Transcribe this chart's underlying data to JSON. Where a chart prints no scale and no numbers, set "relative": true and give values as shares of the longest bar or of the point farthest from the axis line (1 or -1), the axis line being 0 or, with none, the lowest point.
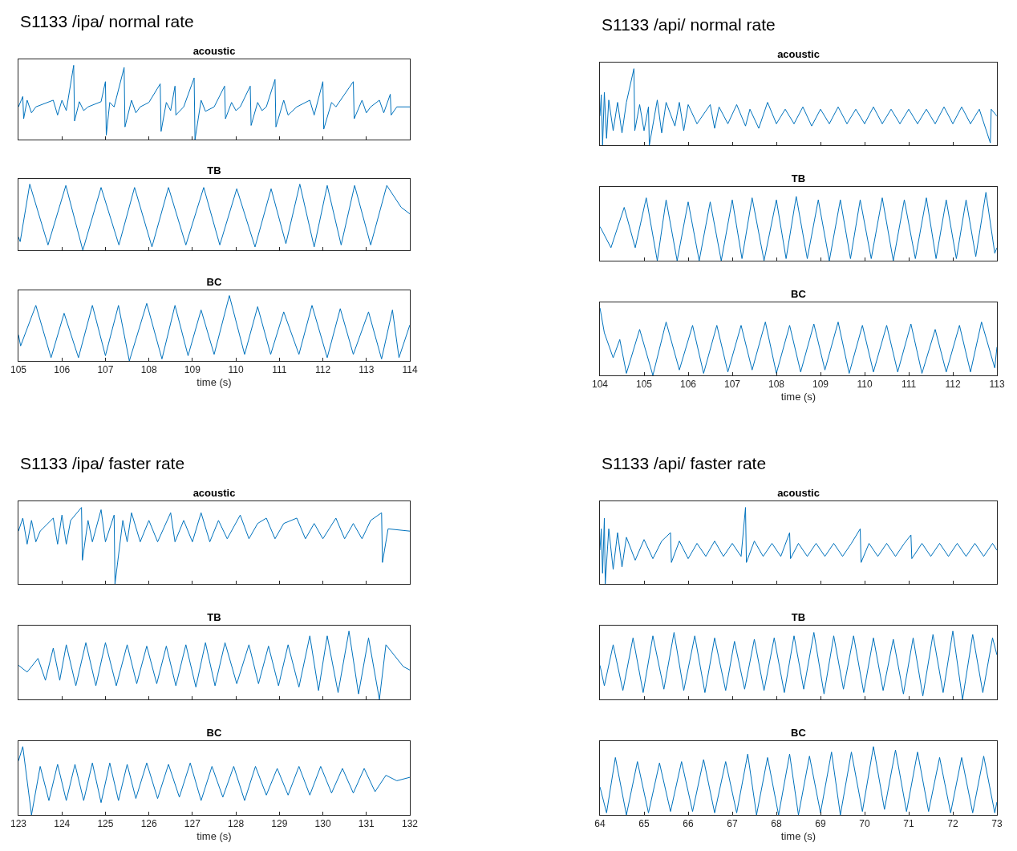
{
  "chart_data": [
    {
      "type": "line",
      "title": "acoustic",
      "annotations": [
        "S1133 /ipa/ normal rate"
      ],
      "relative": true,
      "color": "#0072bd",
      "xlim": [
        105,
        114
      ],
      "xticks": [
        105,
        106,
        107,
        108,
        109,
        110,
        111,
        112,
        113,
        114
      ],
      "tick_labels": false,
      "x": [
        105,
        105.1,
        105.12,
        105.2,
        105.3,
        105.4,
        105.8,
        105.9,
        106.0,
        106.1,
        106.27,
        106.29,
        106.4,
        106.5,
        106.6,
        106.9,
        107.0,
        107.02,
        107.1,
        107.2,
        107.43,
        107.45,
        107.6,
        107.7,
        107.8,
        108.0,
        108.26,
        108.28,
        108.4,
        108.5,
        108.6,
        108.62,
        108.8,
        109.04,
        109.06,
        109.2,
        109.3,
        109.5,
        109.74,
        109.76,
        109.9,
        110.0,
        110.1,
        110.33,
        110.35,
        110.5,
        110.6,
        110.7,
        110.9,
        110.92,
        111.1,
        111.2,
        111.4,
        111.7,
        111.8,
        112.0,
        112.02,
        112.2,
        112.3,
        112.7,
        112.72,
        112.9,
        113.0,
        113.1,
        113.3,
        113.4,
        113.55,
        113.57,
        113.7,
        114.0
      ],
      "values": [
        0.44,
        0.58,
        0.28,
        0.53,
        0.36,
        0.44,
        0.53,
        0.33,
        0.53,
        0.39,
        1,
        0.25,
        0.51,
        0.39,
        0.44,
        0.51,
        0.78,
        0.06,
        0.5,
        0.44,
        0.97,
        0.17,
        0.53,
        0.36,
        0.44,
        0.5,
        0.75,
        0.11,
        0.5,
        0.39,
        0.72,
        0.33,
        0.44,
        0.83,
        0,
        0.53,
        0.38,
        0.44,
        0.72,
        0.28,
        0.5,
        0.39,
        0.44,
        0.72,
        0.19,
        0.5,
        0.39,
        0.44,
        0.81,
        0.17,
        0.53,
        0.33,
        0.44,
        0.53,
        0.33,
        0.78,
        0.14,
        0.5,
        0.44,
        0.78,
        0.28,
        0.53,
        0.36,
        0.44,
        0.53,
        0.36,
        0.61,
        0.33,
        0.44,
        0.44
      ]
    },
    {
      "type": "line",
      "title": "TB",
      "relative": true,
      "color": "#0072bd",
      "xlim": [
        105,
        114
      ],
      "xticks": [
        105,
        106,
        107,
        108,
        109,
        110,
        111,
        112,
        113,
        114
      ],
      "tick_labels": false,
      "x": [
        105,
        105.04,
        105.26,
        105.68,
        106.09,
        106.48,
        106.9,
        107.31,
        107.67,
        108.07,
        108.45,
        108.85,
        109.26,
        109.63,
        110.02,
        110.44,
        110.81,
        111.15,
        111.47,
        111.8,
        112.1,
        112.42,
        112.73,
        113.1,
        113.47,
        113.8,
        114
      ],
      "values": [
        0.2,
        0.13,
        1,
        0.08,
        0.98,
        0,
        0.95,
        0.08,
        0.95,
        0.05,
        0.95,
        0.08,
        0.95,
        0.08,
        0.93,
        0.05,
        0.93,
        0.1,
        1,
        0.05,
        0.98,
        0.08,
        0.98,
        0.08,
        0.98,
        0.65,
        0.55
      ]
    },
    {
      "type": "line",
      "title": "BC",
      "xlabel": "time (s)",
      "relative": true,
      "color": "#0072bd",
      "xlim": [
        105,
        114
      ],
      "xticks": [
        105,
        106,
        107,
        108,
        109,
        110,
        111,
        112,
        113,
        114
      ],
      "tick_labels": "x",
      "x": [
        105,
        105.05,
        105.4,
        105.75,
        106.05,
        106.38,
        106.7,
        107.0,
        107.3,
        107.55,
        107.95,
        108.3,
        108.6,
        108.9,
        109.2,
        109.5,
        109.85,
        110.2,
        110.5,
        110.8,
        111.1,
        111.45,
        111.75,
        112.1,
        112.4,
        112.7,
        113.05,
        113.35,
        113.6,
        113.75,
        114
      ],
      "values": [
        0.4,
        0.23,
        0.85,
        0.05,
        0.73,
        0.05,
        0.85,
        0.08,
        0.85,
        0,
        0.88,
        0.03,
        0.85,
        0.08,
        0.78,
        0.1,
        1,
        0.1,
        0.83,
        0.1,
        0.75,
        0.1,
        0.85,
        0.05,
        0.8,
        0.1,
        0.75,
        0.03,
        0.78,
        0.05,
        0.55
      ]
    },
    {
      "type": "line",
      "title": "acoustic",
      "annotations": [
        "S1133 /api/ normal rate"
      ],
      "relative": true,
      "color": "#0072bd",
      "xlim": [
        104,
        113
      ],
      "xticks": [
        104,
        105,
        106,
        107,
        108,
        109,
        110,
        111,
        112,
        113
      ],
      "tick_labels": false,
      "x": [
        104,
        104.03,
        104.06,
        104.1,
        104.15,
        104.2,
        104.3,
        104.4,
        104.5,
        104.6,
        104.77,
        104.79,
        104.9,
        105.0,
        105.1,
        105.12,
        105.3,
        105.4,
        105.5,
        105.7,
        105.8,
        105.9,
        106.0,
        106.2,
        106.5,
        106.6,
        106.7,
        106.9,
        107.1,
        107.3,
        107.4,
        107.6,
        107.8,
        108.0,
        108.2,
        108.4,
        108.6,
        108.8,
        109.0,
        109.2,
        109.4,
        109.6,
        109.8,
        110.0,
        110.2,
        110.4,
        110.6,
        110.8,
        111.0,
        111.2,
        111.4,
        111.6,
        111.8,
        112.0,
        112.2,
        112.4,
        112.6,
        112.85,
        112.87,
        113
      ],
      "values": [
        0.38,
        0.66,
        0,
        0.69,
        0.09,
        0.59,
        0.19,
        0.56,
        0.16,
        0.56,
        1,
        0.19,
        0.53,
        0.19,
        0.5,
        0,
        0.59,
        0.16,
        0.56,
        0.25,
        0.56,
        0.19,
        0.53,
        0.28,
        0.53,
        0.22,
        0.5,
        0.28,
        0.53,
        0.25,
        0.47,
        0.22,
        0.56,
        0.28,
        0.47,
        0.28,
        0.5,
        0.25,
        0.47,
        0.28,
        0.5,
        0.28,
        0.47,
        0.28,
        0.5,
        0.28,
        0.47,
        0.28,
        0.47,
        0.28,
        0.47,
        0.28,
        0.5,
        0.28,
        0.5,
        0.28,
        0.47,
        0.03,
        0.47,
        0.38
      ]
    },
    {
      "type": "line",
      "title": "TB",
      "relative": true,
      "color": "#0072bd",
      "xlim": [
        104,
        113
      ],
      "xticks": [
        104,
        105,
        106,
        107,
        108,
        109,
        110,
        111,
        112,
        113
      ],
      "tick_labels": false,
      "x": [
        104,
        104.25,
        104.55,
        104.8,
        105.05,
        105.3,
        105.5,
        105.75,
        106.0,
        106.25,
        106.5,
        106.75,
        107.0,
        107.22,
        107.45,
        107.72,
        108.0,
        108.22,
        108.45,
        108.7,
        108.95,
        109.2,
        109.45,
        109.68,
        109.9,
        110.15,
        110.4,
        110.65,
        110.9,
        111.15,
        111.4,
        111.62,
        111.85,
        112.08,
        112.3,
        112.52,
        112.75,
        112.95,
        113
      ],
      "values": [
        0.5,
        0.19,
        0.78,
        0.19,
        0.92,
        0,
        0.89,
        0,
        0.86,
        0,
        0.86,
        0,
        0.89,
        0.03,
        0.92,
        0,
        0.89,
        0.03,
        0.94,
        0.03,
        0.89,
        0,
        0.89,
        0.03,
        0.89,
        0.03,
        0.92,
        0,
        0.89,
        0.03,
        0.92,
        0.03,
        0.89,
        0.03,
        0.89,
        0.06,
        1,
        0.11,
        0.19
      ]
    },
    {
      "type": "line",
      "title": "BC",
      "xlabel": "time (s)",
      "relative": true,
      "color": "#0072bd",
      "xlim": [
        104,
        113
      ],
      "xticks": [
        104,
        105,
        106,
        107,
        108,
        109,
        110,
        111,
        112,
        113
      ],
      "tick_labels": "x",
      "x": [
        104,
        104.1,
        104.3,
        104.45,
        104.6,
        104.9,
        105.2,
        105.5,
        105.8,
        106.1,
        106.35,
        106.65,
        106.9,
        107.2,
        107.45,
        107.75,
        108.0,
        108.3,
        108.55,
        108.85,
        109.1,
        109.4,
        109.65,
        109.95,
        110.2,
        110.5,
        110.75,
        111.05,
        111.3,
        111.6,
        111.85,
        112.15,
        112.4,
        112.65,
        112.95,
        113
      ],
      "values": [
        1,
        0.63,
        0.26,
        0.53,
        0.03,
        0.68,
        0,
        0.79,
        0.08,
        0.74,
        0.03,
        0.74,
        0.05,
        0.74,
        0.08,
        0.79,
        0.03,
        0.74,
        0.05,
        0.76,
        0.08,
        0.79,
        0.03,
        0.74,
        0.05,
        0.74,
        0.05,
        0.76,
        0.03,
        0.68,
        0.05,
        0.74,
        0.05,
        0.79,
        0.11,
        0.42
      ]
    },
    {
      "type": "line",
      "title": "acoustic",
      "annotations": [
        "S1133 /ipa/ faster rate"
      ],
      "relative": true,
      "color": "#0072bd",
      "xlim": [
        123,
        132
      ],
      "xticks": [
        123,
        124,
        125,
        126,
        127,
        128,
        129,
        130,
        131,
        132
      ],
      "tick_labels": false,
      "x": [
        123,
        123.1,
        123.2,
        123.3,
        123.4,
        123.5,
        123.8,
        123.9,
        124.0,
        124.1,
        124.2,
        124.45,
        124.47,
        124.6,
        124.7,
        124.9,
        125.0,
        125.2,
        125.22,
        125.4,
        125.5,
        125.6,
        125.8,
        126.0,
        126.2,
        126.5,
        126.6,
        126.8,
        127.0,
        127.2,
        127.4,
        127.6,
        127.8,
        128.1,
        128.3,
        128.5,
        128.7,
        128.9,
        129.1,
        129.4,
        129.6,
        129.8,
        130.0,
        130.3,
        130.5,
        130.7,
        130.9,
        131.1,
        131.35,
        131.37,
        131.5,
        132
      ],
      "values": [
        0.69,
        0.86,
        0.52,
        0.83,
        0.55,
        0.69,
        0.86,
        0.52,
        0.9,
        0.52,
        0.83,
        1,
        0.31,
        0.83,
        0.55,
        0.97,
        0.55,
        0.9,
        0,
        0.83,
        0.55,
        0.93,
        0.55,
        0.83,
        0.55,
        0.93,
        0.55,
        0.83,
        0.55,
        0.93,
        0.55,
        0.83,
        0.59,
        0.9,
        0.59,
        0.79,
        0.86,
        0.59,
        0.79,
        0.86,
        0.59,
        0.79,
        0.59,
        0.86,
        0.59,
        0.79,
        0.59,
        0.83,
        0.93,
        0.28,
        0.72,
        0.69
      ]
    },
    {
      "type": "line",
      "title": "TB",
      "relative": true,
      "color": "#0072bd",
      "xlim": [
        123,
        132
      ],
      "xticks": [
        123,
        124,
        125,
        126,
        127,
        128,
        129,
        130,
        131,
        132
      ],
      "tick_labels": false,
      "x": [
        123,
        123.2,
        123.45,
        123.62,
        123.8,
        123.95,
        124.1,
        124.32,
        124.55,
        124.78,
        125.0,
        125.25,
        125.5,
        125.72,
        125.95,
        126.18,
        126.4,
        126.62,
        126.85,
        127.08,
        127.3,
        127.52,
        127.75,
        128.02,
        128.3,
        128.52,
        128.75,
        128.98,
        129.2,
        129.45,
        129.7,
        129.9,
        130.1,
        130.35,
        130.6,
        130.82,
        131.05,
        131.3,
        131.45,
        131.85,
        132
      ],
      "values": [
        0.5,
        0.4,
        0.6,
        0.28,
        0.75,
        0.28,
        0.8,
        0.2,
        0.83,
        0.2,
        0.83,
        0.2,
        0.8,
        0.23,
        0.78,
        0.23,
        0.78,
        0.2,
        0.8,
        0.18,
        0.83,
        0.2,
        0.83,
        0.23,
        0.8,
        0.23,
        0.78,
        0.2,
        0.8,
        0.18,
        0.93,
        0.13,
        0.93,
        0.1,
        1,
        0.08,
        0.9,
        0,
        0.8,
        0.48,
        0.43
      ]
    },
    {
      "type": "line",
      "title": "BC",
      "xlabel": "time (s)",
      "relative": true,
      "color": "#0072bd",
      "xlim": [
        123,
        132
      ],
      "xticks": [
        123,
        124,
        125,
        126,
        127,
        128,
        129,
        130,
        131,
        132
      ],
      "tick_labels": "x",
      "x": [
        123,
        123.1,
        123.3,
        123.5,
        123.7,
        123.9,
        124.1,
        124.3,
        124.5,
        124.7,
        124.9,
        125.1,
        125.3,
        125.5,
        125.7,
        125.95,
        126.2,
        126.45,
        126.7,
        126.95,
        127.2,
        127.45,
        127.7,
        127.95,
        128.2,
        128.45,
        128.7,
        128.95,
        129.2,
        129.45,
        129.7,
        129.95,
        130.2,
        130.45,
        130.7,
        130.95,
        131.2,
        131.45,
        131.7,
        132
      ],
      "values": [
        0.79,
        1,
        0,
        0.71,
        0.21,
        0.74,
        0.21,
        0.74,
        0.21,
        0.76,
        0.18,
        0.76,
        0.21,
        0.74,
        0.24,
        0.76,
        0.24,
        0.74,
        0.26,
        0.76,
        0.21,
        0.71,
        0.26,
        0.71,
        0.21,
        0.71,
        0.29,
        0.68,
        0.29,
        0.71,
        0.29,
        0.71,
        0.32,
        0.68,
        0.32,
        0.68,
        0.34,
        0.58,
        0.5,
        0.55
      ]
    },
    {
      "type": "line",
      "title": "acoustic",
      "annotations": [
        "S1133 /api/ faster rate"
      ],
      "relative": true,
      "color": "#0072bd",
      "xlim": [
        64,
        73
      ],
      "xticks": [
        64,
        65,
        66,
        67,
        68,
        69,
        70,
        71,
        72,
        73
      ],
      "tick_labels": false,
      "x": [
        64,
        64.03,
        64.06,
        64.1,
        64.12,
        64.2,
        64.3,
        64.4,
        64.5,
        64.6,
        64.8,
        65.0,
        65.2,
        65.4,
        65.6,
        65.62,
        65.8,
        66.0,
        66.2,
        66.4,
        66.6,
        66.8,
        67.0,
        67.2,
        67.3,
        67.32,
        67.5,
        67.7,
        67.9,
        68.1,
        68.3,
        68.32,
        68.5,
        68.7,
        68.9,
        69.1,
        69.3,
        69.5,
        69.7,
        69.9,
        69.92,
        70.1,
        70.3,
        70.5,
        70.7,
        70.9,
        71.05,
        71.07,
        71.3,
        71.5,
        71.7,
        71.9,
        72.1,
        72.3,
        72.5,
        72.7,
        72.9,
        73
      ],
      "values": [
        0.44,
        0.72,
        0.14,
        0.86,
        0,
        0.72,
        0.19,
        0.67,
        0.22,
        0.61,
        0.31,
        0.58,
        0.33,
        0.56,
        0.67,
        0.28,
        0.56,
        0.33,
        0.53,
        0.36,
        0.56,
        0.36,
        0.53,
        0.36,
        1,
        0.28,
        0.56,
        0.36,
        0.53,
        0.36,
        0.67,
        0.33,
        0.53,
        0.36,
        0.53,
        0.36,
        0.53,
        0.36,
        0.53,
        0.72,
        0.28,
        0.53,
        0.36,
        0.53,
        0.36,
        0.53,
        0.64,
        0.33,
        0.53,
        0.36,
        0.53,
        0.36,
        0.53,
        0.36,
        0.53,
        0.36,
        0.53,
        0.44
      ]
    },
    {
      "type": "line",
      "title": "TB",
      "relative": true,
      "color": "#0072bd",
      "xlim": [
        64,
        73
      ],
      "xticks": [
        64,
        65,
        66,
        67,
        68,
        69,
        70,
        71,
        72,
        73
      ],
      "tick_labels": false,
      "x": [
        64,
        64.1,
        64.3,
        64.52,
        64.75,
        64.98,
        65.2,
        65.45,
        65.68,
        65.9,
        66.15,
        66.38,
        66.6,
        66.85,
        67.05,
        67.28,
        67.5,
        67.72,
        67.95,
        68.18,
        68.4,
        68.62,
        68.85,
        69.08,
        69.3,
        69.52,
        69.75,
        69.98,
        70.2,
        70.42,
        70.65,
        70.88,
        71.1,
        71.32,
        71.55,
        71.78,
        72.0,
        72.22,
        72.45,
        72.68,
        72.9,
        73
      ],
      "values": [
        0.5,
        0.2,
        0.8,
        0.13,
        0.9,
        0.1,
        0.93,
        0.15,
        0.98,
        0.13,
        0.93,
        0.1,
        0.9,
        0.13,
        0.85,
        0.15,
        0.88,
        0.13,
        0.9,
        0.1,
        0.93,
        0.15,
        0.98,
        0.08,
        0.93,
        0.15,
        0.93,
        0.1,
        0.9,
        0.13,
        0.88,
        0.08,
        0.9,
        0.05,
        0.95,
        0.1,
        1,
        0,
        0.95,
        0.1,
        0.9,
        0.65
      ]
    },
    {
      "type": "line",
      "title": "BC",
      "xlabel": "time (s)",
      "relative": true,
      "color": "#0072bd",
      "xlim": [
        64,
        73
      ],
      "xticks": [
        64,
        65,
        66,
        67,
        68,
        69,
        70,
        71,
        72,
        73
      ],
      "tick_labels": "x",
      "x": [
        64,
        64.15,
        64.35,
        64.6,
        64.85,
        65.1,
        65.35,
        65.6,
        65.85,
        66.1,
        66.35,
        66.6,
        66.85,
        67.1,
        67.35,
        67.55,
        67.8,
        68.05,
        68.3,
        68.5,
        68.75,
        69.0,
        69.25,
        69.45,
        69.7,
        69.95,
        70.2,
        70.45,
        70.7,
        70.95,
        71.2,
        71.45,
        71.7,
        71.95,
        72.2,
        72.45,
        72.7,
        72.95,
        73
      ],
      "values": [
        0.41,
        0.03,
        0.84,
        0,
        0.78,
        0.03,
        0.76,
        0.05,
        0.78,
        0.05,
        0.81,
        0.03,
        0.78,
        0.03,
        0.89,
        0,
        0.84,
        0,
        0.89,
        0,
        0.86,
        0.03,
        0.92,
        0,
        0.92,
        0.05,
        1,
        0.08,
        0.95,
        0.05,
        0.92,
        0.05,
        0.84,
        0.03,
        0.84,
        0.03,
        0.86,
        0.03,
        0.19
      ]
    }
  ]
}
